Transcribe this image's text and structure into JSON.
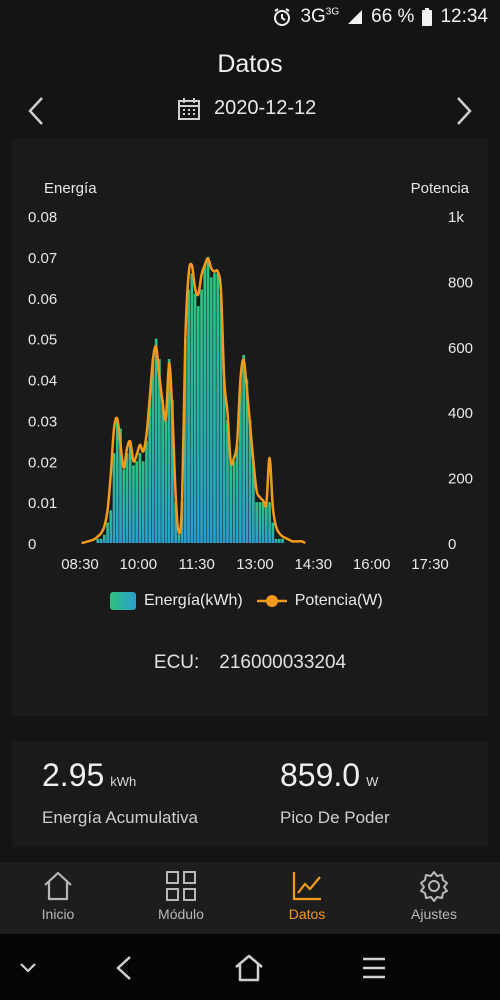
{
  "status": {
    "network": "3G",
    "network_sup": "3G",
    "battery": "66 %",
    "time": "12:34"
  },
  "header": {
    "title": "Datos",
    "date": "2020-12-12"
  },
  "chart": {
    "left_axis_title": "Energía",
    "right_axis_title": "Potencia",
    "legend_energy": "Energía(kWh)",
    "legend_power": "Potencia(W)"
  },
  "chart_data": {
    "type": "bar",
    "xlabel": "",
    "ylabel_left": "Energía",
    "ylabel_right": "Potencia",
    "x_ticks": [
      "08:30",
      "10:00",
      "11:30",
      "13:00",
      "14:30",
      "16:00",
      "17:30"
    ],
    "y_left_ticks": [
      "0",
      "0.01",
      "0.02",
      "0.03",
      "0.04",
      "0.05",
      "0.06",
      "0.07",
      "0.08"
    ],
    "y_right_ticks": [
      "0",
      "200",
      "400",
      "600",
      "800",
      "1k"
    ],
    "ylim_left": [
      0,
      0.08
    ],
    "ylim_right": [
      0,
      1000
    ],
    "x_start": "08:30",
    "x_end": "17:30",
    "interval_minutes": 5,
    "series": [
      {
        "name": "Energía(kWh)",
        "axis": "left",
        "values": [
          0.0,
          0.0,
          0.0,
          0.0,
          0.0,
          0.001,
          0.001,
          0.002,
          0.005,
          0.008,
          0.022,
          0.03,
          0.028,
          0.018,
          0.022,
          0.025,
          0.019,
          0.02,
          0.022,
          0.02,
          0.025,
          0.035,
          0.045,
          0.05,
          0.045,
          0.035,
          0.03,
          0.045,
          0.035,
          0.01,
          0.002,
          0.01,
          0.05,
          0.062,
          0.066,
          0.061,
          0.058,
          0.062,
          0.068,
          0.07,
          0.065,
          0.066,
          0.066,
          0.061,
          0.04,
          0.03,
          0.02,
          0.02,
          0.024,
          0.04,
          0.046,
          0.04,
          0.03,
          0.02,
          0.01,
          0.01,
          0.01,
          0.01,
          0.01,
          0.005,
          0.001,
          0.001,
          0.001,
          0.0,
          0.0,
          0.0,
          0.0,
          0.0,
          0.0,
          0.0
        ]
      },
      {
        "name": "Potencia(W)",
        "axis": "right",
        "values": [
          0,
          2,
          5,
          8,
          12,
          20,
          30,
          50,
          100,
          210,
          350,
          380,
          300,
          230,
          290,
          310,
          250,
          270,
          300,
          280,
          330,
          440,
          560,
          600,
          510,
          430,
          380,
          550,
          400,
          150,
          30,
          130,
          620,
          820,
          850,
          780,
          760,
          820,
          850,
          870,
          840,
          830,
          830,
          770,
          500,
          400,
          250,
          260,
          310,
          500,
          560,
          470,
          360,
          250,
          160,
          140,
          130,
          120,
          260,
          110,
          50,
          30,
          20,
          15,
          10,
          5,
          5,
          5,
          5,
          0
        ]
      }
    ]
  },
  "device": {
    "ecu_label": "ECU:",
    "ecu_value": "216000033204"
  },
  "stats": {
    "energy_value": "2.95",
    "energy_unit": "kWh",
    "energy_label": "Energía Acumulativa",
    "peak_value": "859.0",
    "peak_unit": "W",
    "peak_label": "Pico De Poder"
  },
  "nav": [
    {
      "label": "Inicio",
      "icon": "home-icon"
    },
    {
      "label": "Módulo",
      "icon": "grid-icon"
    },
    {
      "label": "Datos",
      "icon": "chart-icon",
      "active": true
    },
    {
      "label": "Ajustes",
      "icon": "gear-icon"
    }
  ],
  "colors": {
    "accent": "#f39a1d",
    "energy_top": "#2ec27e",
    "energy_bottom": "#2a9fd0",
    "power_line": "#f39a1d",
    "background": "#141414",
    "card": "#1a1a1a"
  }
}
